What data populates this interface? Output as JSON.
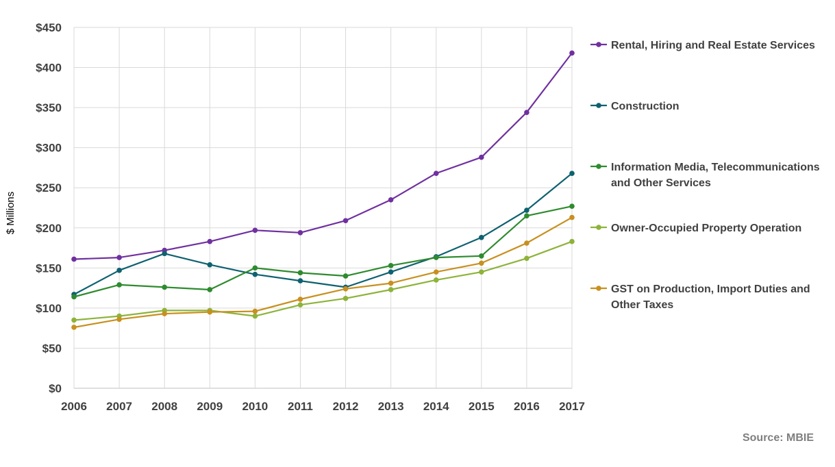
{
  "colors": {
    "grid": "#d9d9d9",
    "axis": "#bfbfbf",
    "text": "#404040",
    "source": "#7f7f7f"
  },
  "source_text": "Source: MBIE",
  "chart_data": {
    "type": "line",
    "title": "",
    "xlabel": "",
    "ylabel": "$ Millions",
    "ylim": [
      0,
      450
    ],
    "ytick_step": 50,
    "ytick_prefix": "$",
    "grid": true,
    "legend_position": "right",
    "x": [
      "2006",
      "2007",
      "2008",
      "2009",
      "2010",
      "2011",
      "2012",
      "2013",
      "2014",
      "2015",
      "2016",
      "2017"
    ],
    "series": [
      {
        "name": "Rental, Hiring and Real Estate Services",
        "legend_lines": [
          "Rental, Hiring and Real Estate Services"
        ],
        "color": "#7030a0",
        "values": [
          161,
          163,
          172,
          183,
          197,
          194,
          209,
          235,
          268,
          288,
          344,
          418
        ]
      },
      {
        "name": "Construction",
        "legend_lines": [
          "Construction"
        ],
        "color": "#0e6170",
        "values": [
          117,
          147,
          168,
          154,
          142,
          134,
          126,
          145,
          164,
          188,
          222,
          268
        ]
      },
      {
        "name": "Information Media, Telecommunications and Other Services",
        "legend_lines": [
          "Information Media, Telecommunications",
          "and Other Services"
        ],
        "color": "#2e8b2e",
        "values": [
          114,
          129,
          126,
          123,
          150,
          144,
          140,
          153,
          163,
          165,
          215,
          227
        ]
      },
      {
        "name": "Owner-Occupied Property Operation",
        "legend_lines": [
          "Owner-Occupied Property Operation"
        ],
        "color": "#8db33a",
        "values": [
          85,
          90,
          97,
          97,
          90,
          104,
          112,
          123,
          135,
          145,
          162,
          183
        ]
      },
      {
        "name": "GST on Production, Import Duties and Other Taxes",
        "legend_lines": [
          "GST on Production, Import Duties and",
          "Other Taxes"
        ],
        "color": "#c8901f",
        "values": [
          76,
          86,
          93,
          95,
          96,
          111,
          124,
          131,
          145,
          156,
          181,
          213
        ]
      }
    ]
  }
}
